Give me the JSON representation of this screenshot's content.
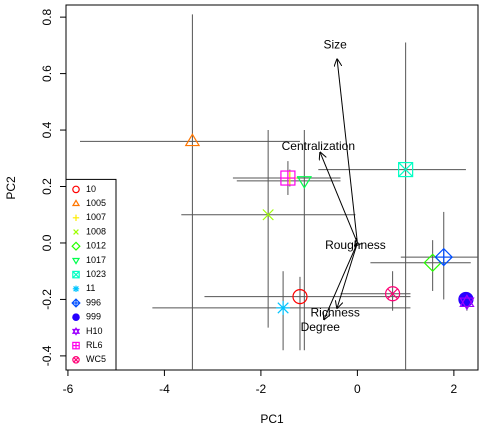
{
  "chart_data": {
    "type": "scatter",
    "x_label": "PC1",
    "y_label": "PC2",
    "xlim": [
      -6.04,
      2.5
    ],
    "ylim": [
      -0.45,
      0.843
    ],
    "xticks": [
      -6,
      -4,
      -2,
      0,
      2
    ],
    "yticks": [
      -0.4,
      -0.2,
      {
        "value": 0,
        "label": "0.0"
      },
      0.2,
      0.4,
      0.6,
      0.8
    ],
    "legend": "bottomleft",
    "series": [
      {
        "name": "10",
        "color": "#FF0000",
        "marker": "circle",
        "x": -1.19,
        "y": -0.19,
        "x_range": [
          -3.17,
          1.1
        ],
        "y_range": [
          -0.12,
          -0.38
        ]
      },
      {
        "name": "1005",
        "color": "#FF7600",
        "marker": "triangle",
        "x": -3.42,
        "y": 0.36,
        "x_range": [
          -5.75,
          -1.19
        ],
        "y_range": [
          0.81,
          -0.45
        ]
      },
      {
        "name": "1007",
        "color": "#FFEC00",
        "marker": "plus",
        "x": -1.4,
        "y": 0.23,
        "x_range": [
          -2.5,
          -0.4
        ],
        "y_range": [
          0.26,
          0.2
        ]
      },
      {
        "name": "1008",
        "color": "#9DFF00",
        "marker": "x",
        "x": -1.85,
        "y": 0.1,
        "x_range": [
          -3.65,
          -0.04
        ],
        "y_range": [
          0.4,
          -0.3
        ]
      },
      {
        "name": "1012",
        "color": "#27FF00",
        "marker": "diamond",
        "x": 1.56,
        "y": -0.07,
        "x_range": [
          0.27,
          2.35
        ],
        "y_range": [
          0.01,
          -0.17
        ]
      },
      {
        "name": "1017",
        "color": "#00FF4E",
        "marker": "triangle-down",
        "x": -1.1,
        "y": 0.22,
        "x_range": [
          -2.5,
          -0.35
        ],
        "y_range": [
          0.4,
          -0.38
        ]
      },
      {
        "name": "1023",
        "color": "#00FFC4",
        "marker": "square-x",
        "x": 1.0,
        "y": 0.26,
        "x_range": [
          -0.81,
          2.25
        ],
        "y_range": [
          0.71,
          -0.45
        ]
      },
      {
        "name": "11",
        "color": "#00C4FF",
        "marker": "star",
        "x": -1.54,
        "y": -0.23,
        "x_range": [
          -4.25,
          1.1
        ],
        "y_range": [
          -0.1,
          -0.38
        ]
      },
      {
        "name": "996",
        "color": "#004EFF",
        "marker": "diamond-plus",
        "x": 1.79,
        "y": -0.05,
        "x_range": [
          0.9,
          2.5
        ],
        "y_range": [
          0.11,
          -0.2
        ]
      },
      {
        "name": "999",
        "color": "#2700FF",
        "marker": "circle-filled",
        "x": 2.25,
        "y": -0.2,
        "x_range": [
          2.2,
          2.3
        ],
        "y_range": [
          -0.18,
          -0.22
        ]
      },
      {
        "name": "H10",
        "color": "#9D00FF",
        "marker": "star-david",
        "x": 2.27,
        "y": -0.21,
        "x_range": [
          2.2,
          2.35
        ],
        "y_range": [
          -0.18,
          -0.24
        ]
      },
      {
        "name": "RL6",
        "color": "#FF00EC",
        "marker": "square-plus",
        "x": -1.44,
        "y": 0.23,
        "x_range": [
          -2.58,
          -0.35
        ],
        "y_range": [
          0.29,
          0.17
        ]
      },
      {
        "name": "WC5",
        "color": "#FF0076",
        "marker": "circle-x",
        "x": 0.73,
        "y": -0.18,
        "x_range": [
          -0.35,
          1.1
        ],
        "y_range": [
          -0.1,
          -0.24
        ]
      }
    ],
    "arrows": [
      {
        "label": "Size",
        "x": -0.42,
        "y": 0.65,
        "label_x": -0.46,
        "label_y": 0.7
      },
      {
        "label": "Centralization",
        "x": -0.77,
        "y": 0.32,
        "label_x": -0.81,
        "label_y": 0.34
      },
      {
        "label": "Roughness",
        "x": -0.05,
        "y": -0.01,
        "label_x": -0.04,
        "label_y": -0.01
      },
      {
        "label": "Richness",
        "x": -0.42,
        "y": -0.23,
        "label_x": -0.46,
        "label_y": -0.25
      },
      {
        "label": "Degree",
        "x": -0.69,
        "y": -0.27,
        "label_x": -0.77,
        "label_y": -0.3
      }
    ]
  }
}
